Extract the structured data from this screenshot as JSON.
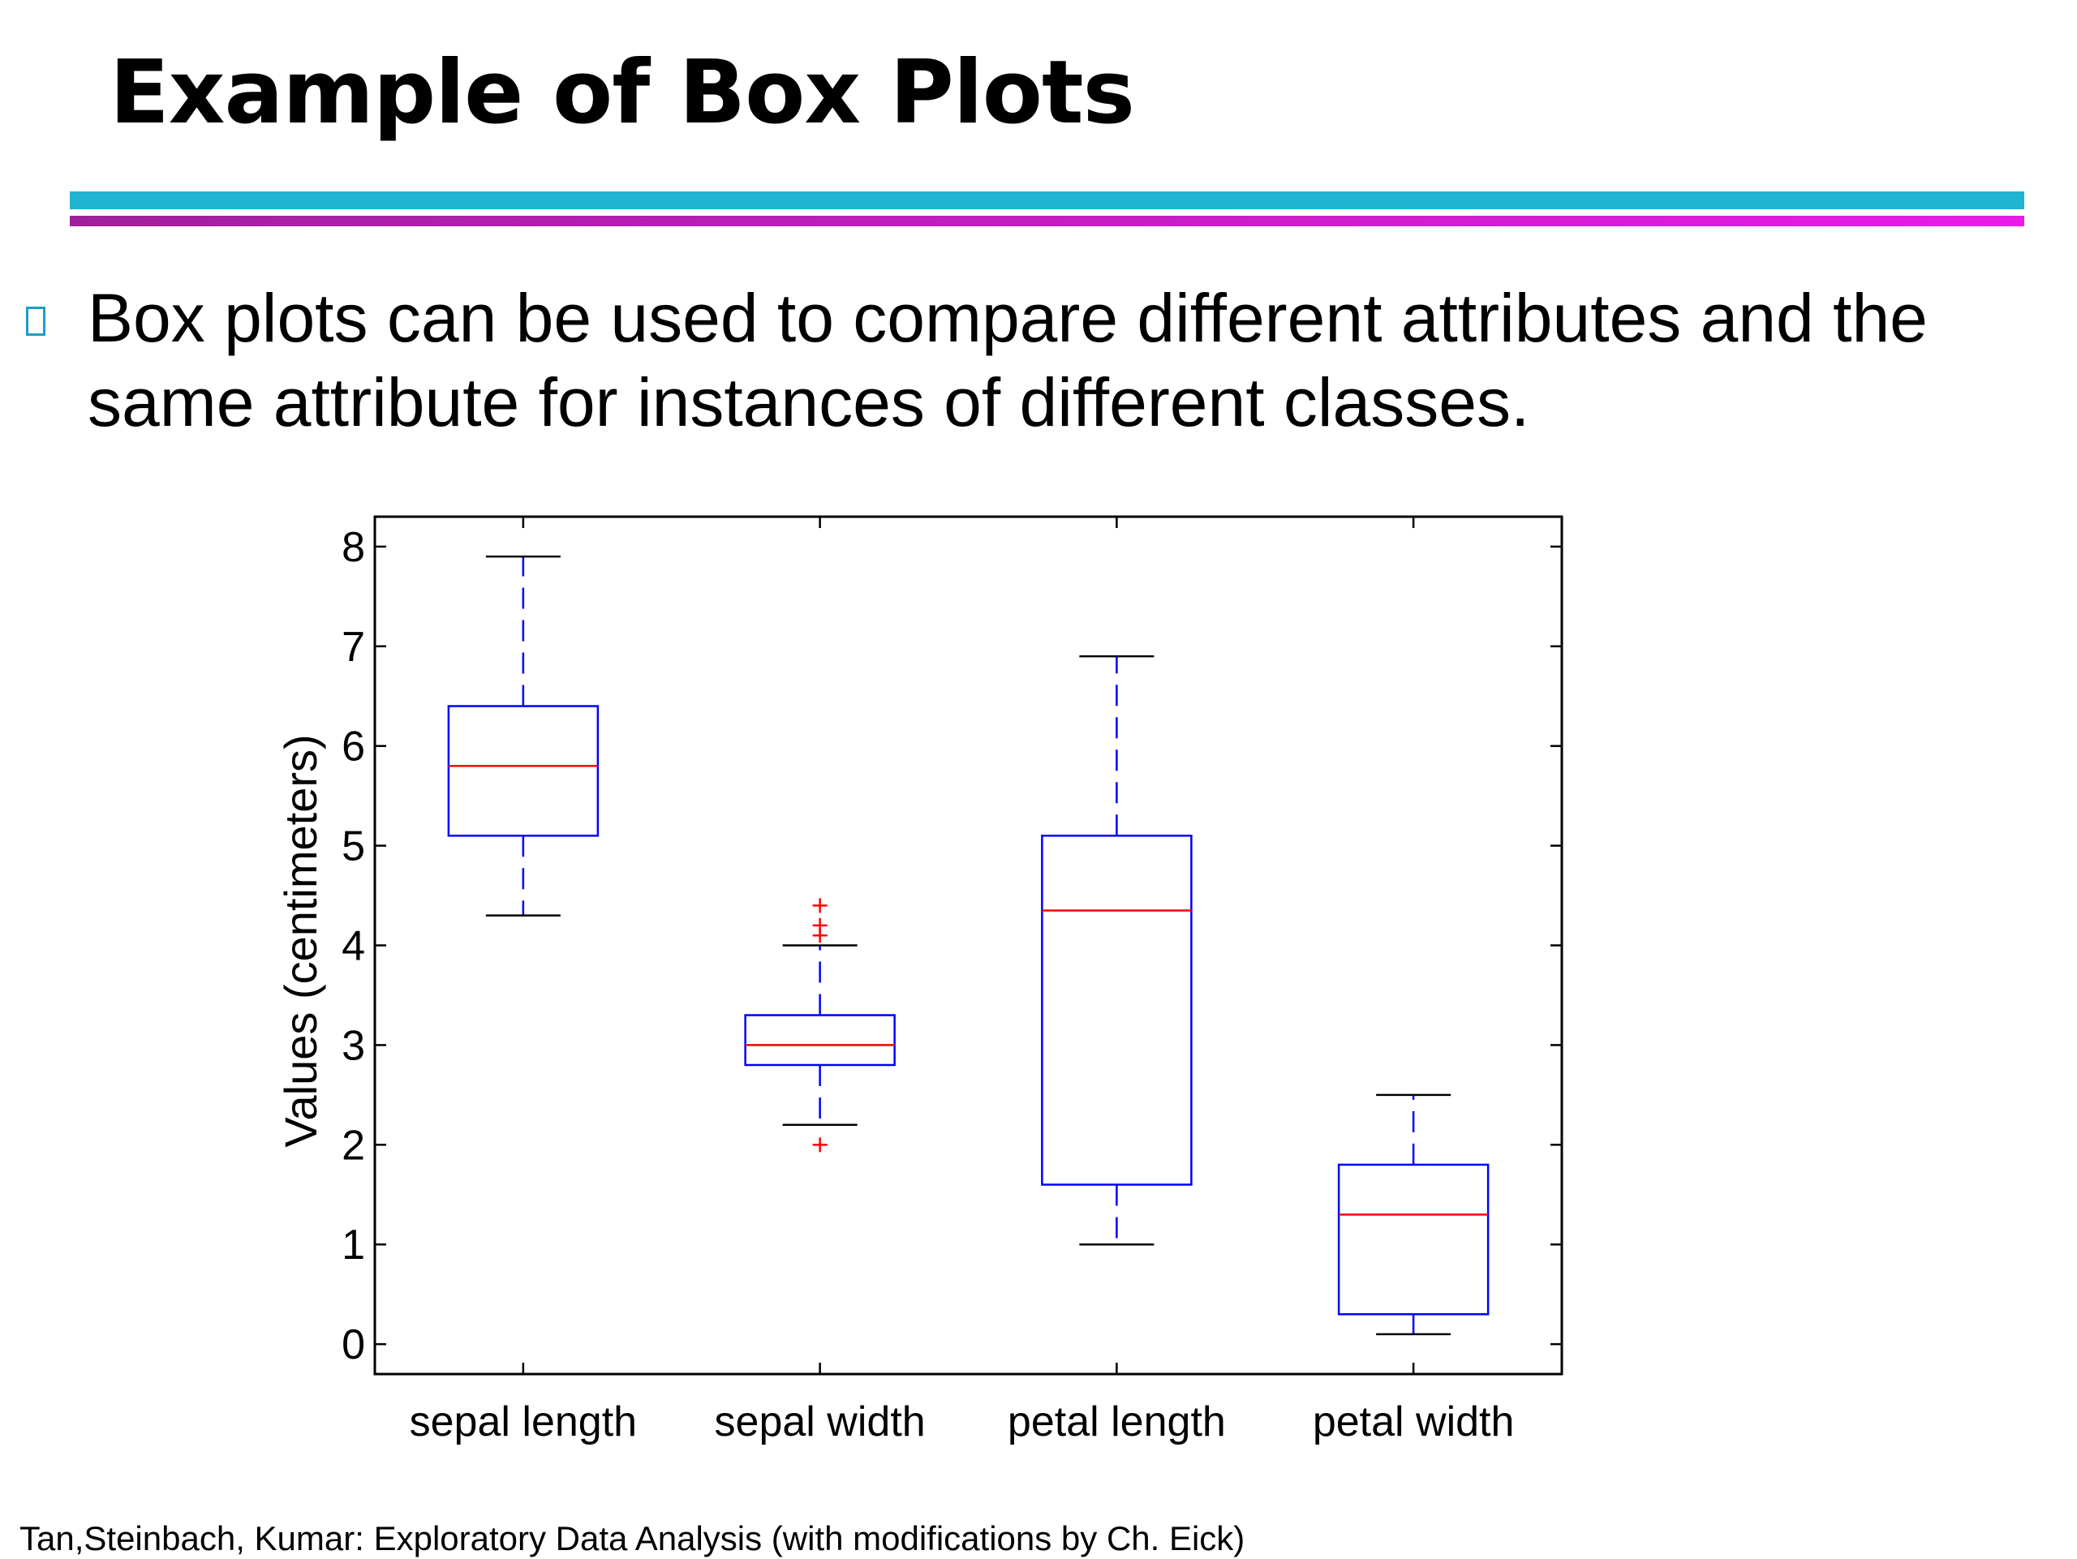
{
  "slide": {
    "title": "Example of Box Plots",
    "bullet": "Box plots can be used to compare different attributes and the same attribute for instances of different classes.",
    "footer": "Tan,Steinbach, Kumar: Exploratory Data Analysis (with modifications by Ch. Eick)",
    "colors": {
      "rule_top": "#1eb4d2",
      "rule_bottom": "#c81cc8",
      "bullet_marker": "#1c9ec8"
    }
  },
  "chart_data": {
    "type": "box",
    "ylabel": "Values (centimeters)",
    "ylim": [
      -0.3,
      8.3
    ],
    "yticks": [
      0,
      1,
      2,
      3,
      4,
      5,
      6,
      7,
      8
    ],
    "grid": false,
    "categories": [
      "sepal length",
      "sepal width",
      "petal length",
      "petal width"
    ],
    "boxes": [
      {
        "name": "sepal length",
        "whisker_low": 4.3,
        "q1": 5.1,
        "median": 5.8,
        "q3": 6.4,
        "whisker_high": 7.9,
        "outliers": []
      },
      {
        "name": "sepal width",
        "whisker_low": 2.2,
        "q1": 2.8,
        "median": 3.0,
        "q3": 3.3,
        "whisker_high": 4.0,
        "outliers": [
          2.0,
          4.1,
          4.2,
          4.4
        ]
      },
      {
        "name": "petal length",
        "whisker_low": 1.0,
        "q1": 1.6,
        "median": 4.35,
        "q3": 5.1,
        "whisker_high": 6.9,
        "outliers": []
      },
      {
        "name": "petal width",
        "whisker_low": 0.1,
        "q1": 0.3,
        "median": 1.3,
        "q3": 1.8,
        "whisker_high": 2.5,
        "outliers": []
      }
    ],
    "colors": {
      "box": "#0000ff",
      "median": "#ff0000",
      "outlier": "#ff0000",
      "whisker_cap": "#000000",
      "axes": "#000000"
    }
  }
}
